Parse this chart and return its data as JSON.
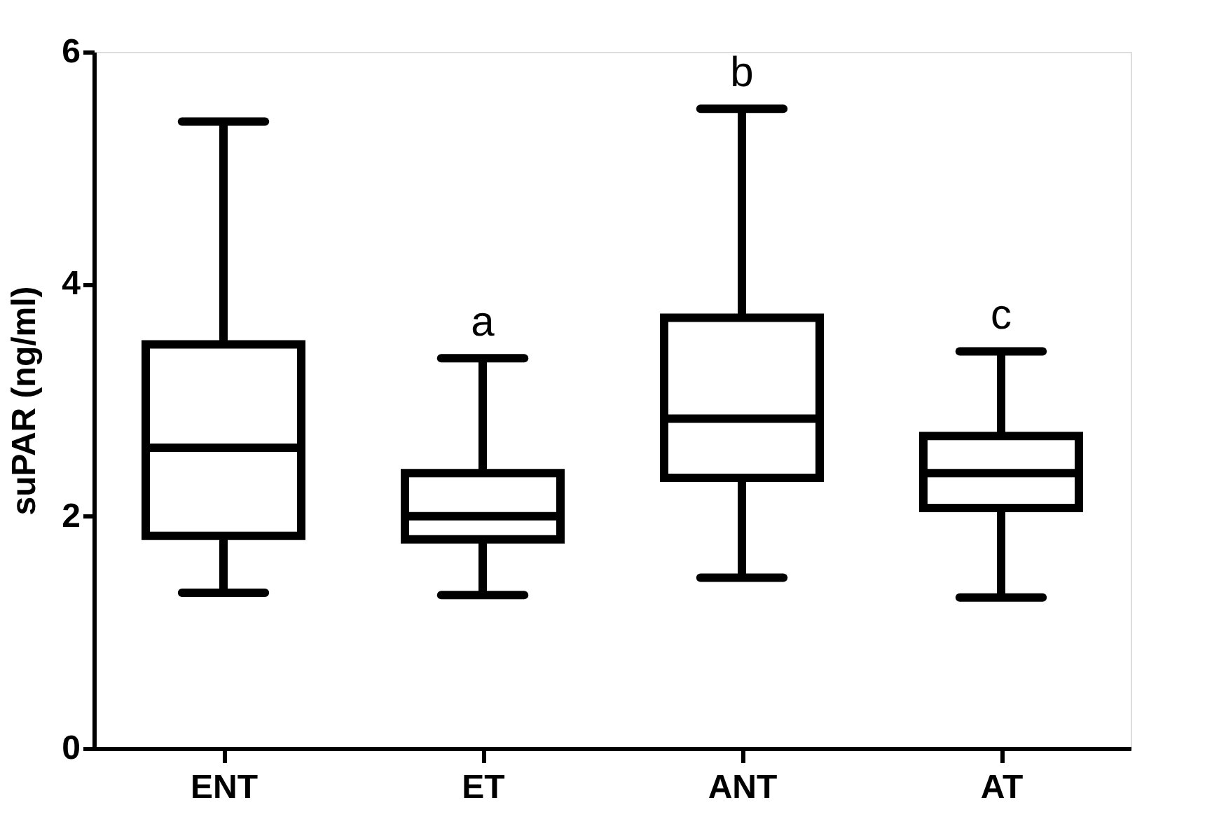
{
  "chart_data": {
    "type": "box",
    "ylabel": "suPAR (ng/ml)",
    "categories": [
      "ENT",
      "ET",
      "ANT",
      "AT"
    ],
    "boxes": [
      {
        "low": 1.34,
        "q1": 1.83,
        "median": 2.59,
        "q3": 3.48,
        "high": 5.4
      },
      {
        "low": 1.32,
        "q1": 1.8,
        "median": 2.0,
        "q3": 2.37,
        "high": 3.36
      },
      {
        "low": 1.47,
        "q1": 2.33,
        "median": 2.84,
        "q3": 3.71,
        "high": 5.51
      },
      {
        "low": 1.3,
        "q1": 2.07,
        "median": 2.37,
        "q3": 2.69,
        "high": 3.42
      }
    ],
    "color": "#000000",
    "ylim": [
      0,
      6
    ],
    "yticks": [
      0,
      2,
      4,
      6
    ],
    "grid": false,
    "annotations": [
      "a",
      "b",
      "c"
    ]
  }
}
